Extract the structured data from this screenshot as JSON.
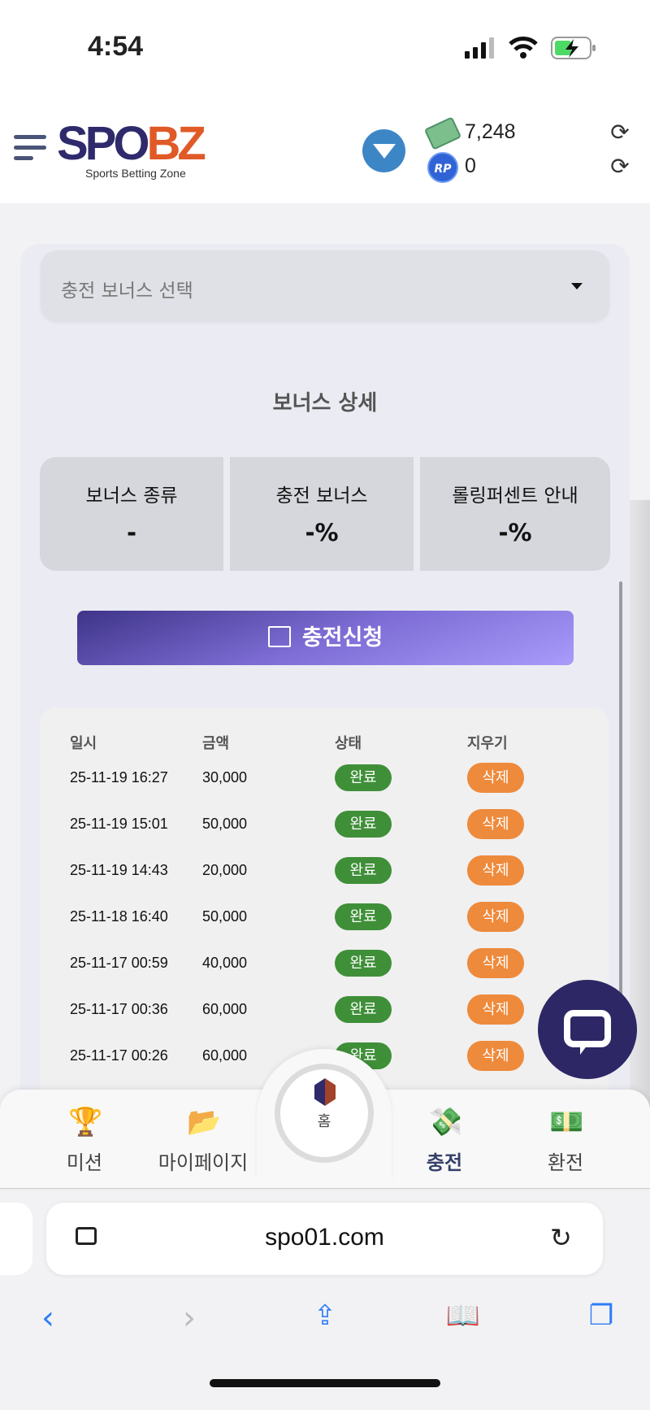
{
  "status_bar": {
    "time": "4:54",
    "battery": "charging"
  },
  "header": {
    "logo_main_a": "SPO",
    "logo_main_b": "BZ",
    "logo_sub": "Sports Betting Zone",
    "cash_balance": "7,248",
    "rp_label": "RP",
    "rp_balance": "0"
  },
  "bonus": {
    "select_placeholder": "충전 보너스 선택",
    "detail_title": "보너스 상세",
    "boxes": [
      {
        "label": "보너스 종류",
        "value": "-"
      },
      {
        "label": "충전 보너스",
        "value": "-%"
      },
      {
        "label": "롤링퍼센트 안내",
        "value": "-%"
      }
    ],
    "apply_label": "충전신청"
  },
  "history": {
    "headers": [
      "일시",
      "금액",
      "상태",
      "지우기"
    ],
    "rows": [
      {
        "date": "25-11-19 16:27",
        "amount": "30,000",
        "status": "완료",
        "action": "삭제"
      },
      {
        "date": "25-11-19 15:01",
        "amount": "50,000",
        "status": "완료",
        "action": "삭제"
      },
      {
        "date": "25-11-19 14:43",
        "amount": "20,000",
        "status": "완료",
        "action": "삭제"
      },
      {
        "date": "25-11-18 16:40",
        "amount": "50,000",
        "status": "완료",
        "action": "삭제"
      },
      {
        "date": "25-11-17 00:59",
        "amount": "40,000",
        "status": "완료",
        "action": "삭제"
      },
      {
        "date": "25-11-17 00:36",
        "amount": "60,000",
        "status": "완료",
        "action": "삭제"
      },
      {
        "date": "25-11-17 00:26",
        "amount": "60,000",
        "status": "완료",
        "action": "삭제"
      }
    ]
  },
  "nav": {
    "items": [
      {
        "label": "미션",
        "icon": "trophy-icon"
      },
      {
        "label": "마이페이지",
        "icon": "folder-icon"
      },
      {
        "label": "홈",
        "icon": "home-logo-icon"
      },
      {
        "label": "충전",
        "icon": "deposit-icon"
      },
      {
        "label": "환전",
        "icon": "withdraw-icon"
      }
    ]
  },
  "browser": {
    "url": "spo01.com"
  },
  "colors": {
    "brand_navy": "#2e2a6b",
    "brand_orange": "#e05a28",
    "status_green": "#3f8f38",
    "delete_orange": "#ee8a3c",
    "accent_purple": "#7c6cd4"
  }
}
